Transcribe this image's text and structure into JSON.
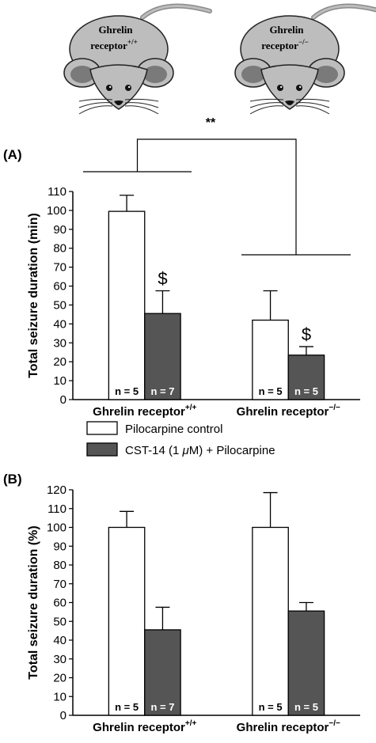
{
  "mice": [
    {
      "label": "Ghrelin",
      "label2": "receptor",
      "sup": "+/+"
    },
    {
      "label": "Ghrelin",
      "label2": "receptor",
      "sup": "−/−"
    }
  ],
  "significance": "**",
  "colors": {
    "control": "#ffffff",
    "treated": "#555555",
    "mouse_body": "#bdbdbd",
    "mouse_ear_inner": "#7a7a7a"
  },
  "legend": {
    "items": [
      {
        "series": "control",
        "label": "Pilocarpine control"
      },
      {
        "series": "treated",
        "label_pre": "CST-14 (1 ",
        "label_mu": "μ",
        "label_post": "M) + Pilocarpine"
      }
    ]
  },
  "chart_data": [
    {
      "panel": "(A)",
      "type": "bar",
      "ylabel": "Total seizure duration (min)",
      "ylim": [
        0,
        110
      ],
      "yticks": [
        0,
        10,
        20,
        30,
        40,
        50,
        60,
        70,
        80,
        90,
        100,
        110
      ],
      "groups": [
        {
          "label": "Ghrelin receptor",
          "sup": "+/+"
        },
        {
          "label": "Ghrelin receptor",
          "sup": "−/−"
        }
      ],
      "bars": [
        {
          "group": 0,
          "series": "control",
          "value": 99.5,
          "err": 8.5,
          "n": "n = 5",
          "mark": ""
        },
        {
          "group": 0,
          "series": "treated",
          "value": 45.5,
          "err": 12,
          "n": "n = 7",
          "mark": "$"
        },
        {
          "group": 1,
          "series": "control",
          "value": 42,
          "err": 15.5,
          "n": "n = 5",
          "mark": ""
        },
        {
          "group": 1,
          "series": "treated",
          "value": 23.5,
          "err": 4.5,
          "n": "n = 5",
          "mark": "$"
        }
      ]
    },
    {
      "panel": "(B)",
      "type": "bar",
      "ylabel": "Total seizure duration (%)",
      "ylim": [
        0,
        120
      ],
      "yticks": [
        0,
        10,
        20,
        30,
        40,
        50,
        60,
        70,
        80,
        90,
        100,
        110,
        120
      ],
      "groups": [
        {
          "label": "Ghrelin receptor",
          "sup": "+/+"
        },
        {
          "label": "Ghrelin receptor",
          "sup": "−/−"
        }
      ],
      "bars": [
        {
          "group": 0,
          "series": "control",
          "value": 100,
          "err": 8.5,
          "n": "n = 5",
          "mark": ""
        },
        {
          "group": 0,
          "series": "treated",
          "value": 45.5,
          "err": 12,
          "n": "n = 7",
          "mark": ""
        },
        {
          "group": 1,
          "series": "control",
          "value": 100,
          "err": 18.5,
          "n": "n = 5",
          "mark": ""
        },
        {
          "group": 1,
          "series": "treated",
          "value": 55.5,
          "err": 4.5,
          "n": "n = 5",
          "mark": ""
        }
      ]
    }
  ]
}
